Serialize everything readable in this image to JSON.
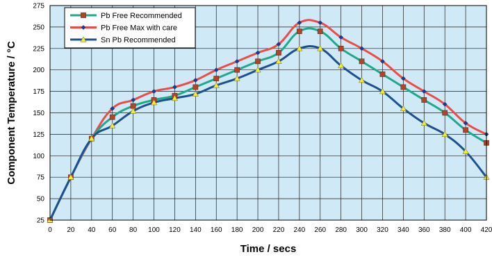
{
  "chart_data": {
    "type": "line",
    "xlabel": "Time / secs",
    "ylabel": "Component Temperature / °C",
    "x": [
      0,
      20,
      40,
      60,
      80,
      100,
      120,
      140,
      160,
      180,
      200,
      220,
      240,
      260,
      280,
      300,
      320,
      340,
      360,
      380,
      400,
      420
    ],
    "xlim": [
      0,
      420
    ],
    "ylim": [
      25,
      275
    ],
    "xticks": [
      0,
      20,
      40,
      60,
      80,
      100,
      120,
      140,
      160,
      180,
      200,
      220,
      240,
      260,
      280,
      300,
      320,
      340,
      360,
      380,
      400,
      420
    ],
    "yticks": [
      25,
      50,
      75,
      100,
      125,
      150,
      175,
      200,
      225,
      250,
      275
    ],
    "grid": true,
    "background_color": "#cfe9f7",
    "legend_position": "top-left",
    "series": [
      {
        "name": "Pb Free Recommended",
        "color": "#1fa98a",
        "marker": "square",
        "marker_color": "#b0452a",
        "values": [
          25,
          75,
          120,
          145,
          158,
          165,
          170,
          180,
          190,
          200,
          210,
          220,
          245,
          245,
          225,
          210,
          195,
          180,
          165,
          150,
          130,
          115
        ]
      },
      {
        "name": "Pb Free Max with care",
        "color": "#ee4b46",
        "marker": "diamond",
        "marker_color": "#1e3a8a",
        "values": [
          25,
          75,
          120,
          155,
          165,
          175,
          180,
          188,
          200,
          210,
          220,
          230,
          255,
          255,
          238,
          225,
          210,
          190,
          175,
          160,
          138,
          125
        ]
      },
      {
        "name": "Sn Pb Recommended",
        "color": "#1d4f91",
        "marker": "triangle",
        "marker_color": "#f2e93a",
        "values": [
          25,
          75,
          120,
          135,
          152,
          162,
          167,
          172,
          182,
          190,
          200,
          210,
          225,
          225,
          205,
          188,
          175,
          155,
          138,
          125,
          105,
          75
        ]
      }
    ]
  }
}
